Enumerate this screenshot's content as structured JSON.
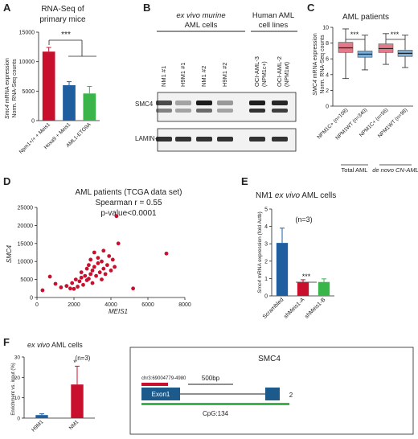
{
  "panels": {
    "A": {
      "letter": "A",
      "title_line1": "RNA-Seq of",
      "title_line2": "primary mice",
      "ylabel_gene": "Smc4",
      "ylabel_rest": " mRNA expression",
      "ylabel_line2": "Norm. RNA-Seq counts",
      "significance": "***",
      "chart_data": {
        "type": "bar",
        "categories": [
          "Npm1+/+ + Meis1",
          "Hoxa9 + Meis1",
          "AML1-ETO9A"
        ],
        "values": [
          11700,
          6000,
          4600
        ],
        "errors": [
          700,
          600,
          1200
        ],
        "ylim": [
          0,
          15000
        ],
        "yticks": [
          "0",
          "5000",
          "10000",
          "15000"
        ],
        "colors": [
          "#c8102e",
          "#1f5fa0",
          "#3ab54a"
        ]
      }
    },
    "B": {
      "letter": "B",
      "group1_line1": "ex vivo murine",
      "group1_line2": "AML cells",
      "group2_line1": "Human AML",
      "group2_line2": "cell lines",
      "lanes": [
        "NM1 #1",
        "H9M1 #1",
        "NM1 #2",
        "H9M1 #2",
        "OCI-AML-3",
        "OCI-AML-2"
      ],
      "lane_sub": [
        "",
        "",
        "",
        "",
        "(NPM1c+)",
        "(NPM1wt)"
      ],
      "blot_labels": [
        "SMC4",
        "LAMIN-B"
      ]
    },
    "C": {
      "letter": "C",
      "title": "AML patients",
      "ylabel_gene": "SMC4",
      "ylabel_rest": " mRNA expression",
      "ylabel_line2": "Norm. RNA-Seq counts",
      "significance": [
        "***",
        "***"
      ],
      "group_labels": [
        "Total AML",
        "de novo CN-AML"
      ],
      "chart_data": {
        "type": "box",
        "categories": [
          "NPM1C+ (n=108)",
          "NPM1WT (n=340)",
          "NPM1C+ (n=56)",
          "NPM1WT (n=98)"
        ],
        "boxes": [
          {
            "min": 3.5,
            "q1": 6.8,
            "median": 7.4,
            "q3": 8.1,
            "max": 9.8
          },
          {
            "min": 4.6,
            "q1": 6.2,
            "median": 6.6,
            "q3": 7.0,
            "max": 9.0
          },
          {
            "min": 5.3,
            "q1": 6.8,
            "median": 7.3,
            "q3": 7.9,
            "max": 9.2
          },
          {
            "min": 4.9,
            "q1": 6.3,
            "median": 6.7,
            "q3": 7.1,
            "max": 9.0
          }
        ],
        "ylim": [
          0,
          10
        ],
        "yticks": [
          "0",
          "2",
          "4",
          "6",
          "8",
          "10"
        ],
        "colors": [
          "#e37a8a",
          "#7aaed8",
          "#e37a8a",
          "#7aaed8"
        ]
      }
    },
    "D": {
      "letter": "D",
      "title": "AML patients (TCGA data set)",
      "stat1": "Spearman r = 0.55",
      "stat2": "p-value<0.0001",
      "xlabel": "MEIS1",
      "ylabel": "SMC4",
      "chart_data": {
        "type": "scatter",
        "xlim": [
          0,
          8000
        ],
        "ylim": [
          0,
          25000
        ],
        "xticks": [
          "0",
          "2000",
          "4000",
          "6000",
          "8000"
        ],
        "yticks": [
          "0",
          "5000",
          "10000",
          "15000",
          "20000",
          "25000"
        ],
        "color": "#c8102e",
        "points": [
          [
            300,
            2000
          ],
          [
            700,
            5800
          ],
          [
            1000,
            3800
          ],
          [
            1300,
            2800
          ],
          [
            1600,
            3200
          ],
          [
            1800,
            2500
          ],
          [
            1900,
            4000
          ],
          [
            2000,
            2400
          ],
          [
            2100,
            5000
          ],
          [
            2200,
            3000
          ],
          [
            2300,
            4500
          ],
          [
            2400,
            5500
          ],
          [
            2400,
            7000
          ],
          [
            2500,
            3500
          ],
          [
            2600,
            6000
          ],
          [
            2700,
            4800
          ],
          [
            2700,
            8000
          ],
          [
            2800,
            5200
          ],
          [
            2800,
            9000
          ],
          [
            2900,
            6500
          ],
          [
            2900,
            10500
          ],
          [
            3000,
            4000
          ],
          [
            3000,
            7500
          ],
          [
            3100,
            12500
          ],
          [
            3100,
            8500
          ],
          [
            3200,
            6000
          ],
          [
            3300,
            11000
          ],
          [
            3300,
            9500
          ],
          [
            3400,
            7000
          ],
          [
            3500,
            5000
          ],
          [
            3500,
            10000
          ],
          [
            3600,
            8000
          ],
          [
            3600,
            13000
          ],
          [
            3700,
            6500
          ],
          [
            3800,
            9000
          ],
          [
            3900,
            11500
          ],
          [
            4000,
            7500
          ],
          [
            4100,
            10500
          ],
          [
            4200,
            8500
          ],
          [
            4300,
            22600
          ],
          [
            4400,
            15000
          ],
          [
            5200,
            2500
          ],
          [
            7000,
            12200
          ]
        ]
      }
    },
    "E": {
      "letter": "E",
      "title_pre": "NM1 ",
      "title_ital": "ex vivo",
      "title_post": " AML cells",
      "n_label": "(n=3)",
      "significance": "***",
      "ylabel_gene": "Smc4",
      "ylabel_rest": " mRNA expression (fold Actb)",
      "chart_data": {
        "type": "bar",
        "categories": [
          "Scrambled",
          "shMeis1-A",
          "shMeis1-B"
        ],
        "values": [
          3.05,
          0.78,
          0.8
        ],
        "errors": [
          0.85,
          0.15,
          0.18
        ],
        "ylim": [
          0,
          5
        ],
        "yticks": [
          "0",
          "1",
          "2",
          "3",
          "4",
          "5"
        ],
        "colors": [
          "#1f5fa0",
          "#c8102e",
          "#3ab54a"
        ]
      }
    },
    "F": {
      "letter": "F",
      "title_ital": "ex vivo",
      "title_post": " AML cells",
      "n_label": "(n=3)",
      "significance": "*",
      "ylabel": "Enrichment vs. input (%)",
      "chart_data": {
        "type": "bar",
        "categories": [
          "H9M1",
          "NM1"
        ],
        "values": [
          1.5,
          16.5
        ],
        "errors": [
          0.6,
          9.0
        ],
        "ylim": [
          0,
          30
        ],
        "yticks": [
          "0",
          "10",
          "20",
          "30"
        ],
        "colors": [
          "#1f5fa0",
          "#c8102e"
        ]
      },
      "gene": {
        "title": "SMC4",
        "coord": "chr3:69004779-4980",
        "scale": "500bp",
        "exon1": "Exon1",
        "exon2": "2",
        "cpg": "CpG:134"
      }
    }
  },
  "colors": {
    "red": "#c8102e",
    "blue": "#1f5fa0",
    "green": "#3ab54a",
    "dark_blue": "#1b5a8a"
  }
}
